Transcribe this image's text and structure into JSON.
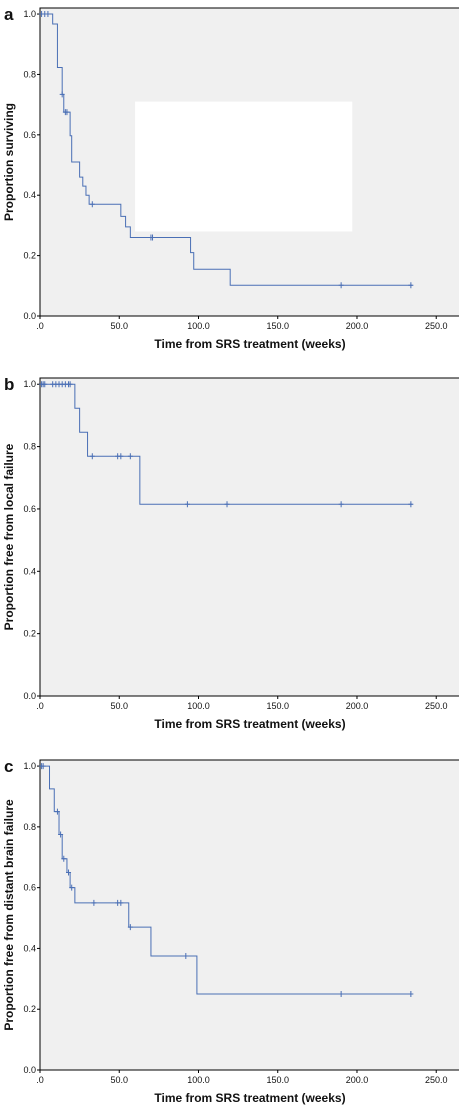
{
  "colors": {
    "curve": "#4a6fb5",
    "plot_background": "#f0f0f0",
    "frame": "#000000"
  },
  "chart_data": [
    {
      "panel_label": "a",
      "type": "line",
      "step": true,
      "xlabel": "Time from SRS treatment (weeks)",
      "ylabel": "Proportion surviving",
      "xlim": [
        0,
        265
      ],
      "ylim": [
        0,
        1.02
      ],
      "x_ticks": [
        0,
        50,
        100,
        150,
        200,
        250
      ],
      "x_tick_labels": [
        ".0",
        "50.0",
        "100.0",
        "150.0",
        "200.0",
        "250.0"
      ],
      "y_ticks": [
        0,
        0.2,
        0.4,
        0.6,
        0.8,
        1.0
      ],
      "y_tick_labels": [
        "0.0",
        "0.2",
        "0.4",
        "0.6",
        "0.8",
        "1.0"
      ],
      "grid": false,
      "steps": [
        [
          0,
          1.0
        ],
        [
          8,
          0.967
        ],
        [
          11,
          0.823
        ],
        [
          14,
          0.734
        ],
        [
          15,
          0.675
        ],
        [
          19,
          0.597
        ],
        [
          20,
          0.51
        ],
        [
          25,
          0.46
        ],
        [
          27,
          0.43
        ],
        [
          29,
          0.4
        ],
        [
          31,
          0.37
        ],
        [
          51,
          0.33
        ],
        [
          54,
          0.295
        ],
        [
          57,
          0.26
        ],
        [
          95,
          0.21
        ],
        [
          97,
          0.155
        ],
        [
          120,
          0.102
        ],
        [
          235,
          0.102
        ]
      ],
      "censored": [
        [
          1,
          1.0
        ],
        [
          3,
          1.0
        ],
        [
          5,
          1.0
        ],
        [
          14,
          0.734
        ],
        [
          16,
          0.675
        ],
        [
          17,
          0.675
        ],
        [
          33,
          0.37
        ],
        [
          70,
          0.26
        ],
        [
          71,
          0.26
        ],
        [
          190,
          0.102
        ],
        [
          234,
          0.102
        ]
      ],
      "redaction_box": {
        "x": [
          60,
          197
        ],
        "y": [
          0.28,
          0.71
        ]
      }
    },
    {
      "panel_label": "b",
      "type": "line",
      "step": true,
      "xlabel": "Time from SRS treatment (weeks)",
      "ylabel": "Proportion free from local failure",
      "xlim": [
        0,
        265
      ],
      "ylim": [
        0,
        1.02
      ],
      "x_ticks": [
        0,
        50,
        100,
        150,
        200,
        250
      ],
      "x_tick_labels": [
        ".0",
        "50.0",
        "100.0",
        "150.0",
        "200.0",
        "250.0"
      ],
      "y_ticks": [
        0,
        0.2,
        0.4,
        0.6,
        0.8,
        1.0
      ],
      "y_tick_labels": [
        "0.0",
        "0.2",
        "0.4",
        "0.6",
        "0.8",
        "1.0"
      ],
      "grid": false,
      "steps": [
        [
          0,
          1.0
        ],
        [
          22,
          0.923
        ],
        [
          25,
          0.846
        ],
        [
          30,
          0.769
        ],
        [
          63,
          0.615
        ],
        [
          235,
          0.615
        ]
      ],
      "censored": [
        [
          1,
          1.0
        ],
        [
          2,
          1.0
        ],
        [
          3,
          1.0
        ],
        [
          8,
          1.0
        ],
        [
          10,
          1.0
        ],
        [
          12,
          1.0
        ],
        [
          14,
          1.0
        ],
        [
          16,
          1.0
        ],
        [
          18,
          1.0
        ],
        [
          19,
          1.0
        ],
        [
          33,
          0.769
        ],
        [
          49,
          0.769
        ],
        [
          51,
          0.769
        ],
        [
          57,
          0.769
        ],
        [
          93,
          0.615
        ],
        [
          118,
          0.615
        ],
        [
          190,
          0.615
        ],
        [
          234,
          0.615
        ]
      ]
    },
    {
      "panel_label": "c",
      "type": "line",
      "step": true,
      "xlabel": "Time from SRS treatment (weeks)",
      "ylabel": "Proportion free from distant brain failure",
      "xlim": [
        0,
        265
      ],
      "ylim": [
        0,
        1.02
      ],
      "x_ticks": [
        0,
        50,
        100,
        150,
        200,
        250
      ],
      "x_tick_labels": [
        ".0",
        "50.0",
        "100.0",
        "150.0",
        "200.0",
        "250.0"
      ],
      "y_ticks": [
        0,
        0.2,
        0.4,
        0.6,
        0.8,
        1.0
      ],
      "y_tick_labels": [
        "0.0",
        "0.2",
        "0.4",
        "0.6",
        "0.8",
        "1.0"
      ],
      "grid": false,
      "steps": [
        [
          0,
          1.0
        ],
        [
          6,
          0.925
        ],
        [
          9,
          0.85
        ],
        [
          12,
          0.775
        ],
        [
          14,
          0.695
        ],
        [
          17,
          0.65
        ],
        [
          19,
          0.6
        ],
        [
          22,
          0.55
        ],
        [
          56,
          0.47
        ],
        [
          70,
          0.375
        ],
        [
          99,
          0.25
        ],
        [
          235,
          0.25
        ]
      ],
      "censored": [
        [
          1,
          1.0
        ],
        [
          2,
          1.0
        ],
        [
          11,
          0.85
        ],
        [
          13,
          0.775
        ],
        [
          15,
          0.695
        ],
        [
          18,
          0.65
        ],
        [
          20,
          0.6
        ],
        [
          34,
          0.55
        ],
        [
          49,
          0.55
        ],
        [
          51,
          0.55
        ],
        [
          57,
          0.47
        ],
        [
          92,
          0.375
        ],
        [
          190,
          0.25
        ],
        [
          234,
          0.25
        ]
      ]
    }
  ]
}
